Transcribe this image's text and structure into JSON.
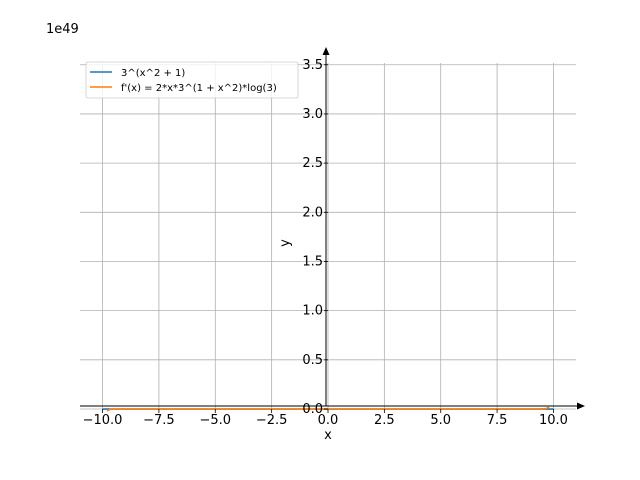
{
  "chart_data": {
    "type": "line",
    "title": "",
    "xlabel": "x",
    "ylabel": "y",
    "offset_text": "1e49",
    "xlim": [
      -11,
      11
    ],
    "ylim": [
      -0.01,
      3.65
    ],
    "xticks": [
      -10.0,
      -7.5,
      -5.0,
      -2.5,
      0.0,
      2.5,
      5.0,
      7.5,
      10.0
    ],
    "xtick_labels": [
      "−10.0",
      "−7.5",
      "−5.0",
      "−2.5",
      "0.0",
      "2.5",
      "5.0",
      "7.5",
      "10.0"
    ],
    "yticks": [
      0.0,
      0.5,
      1.0,
      1.5,
      2.0,
      2.5,
      3.0,
      3.5
    ],
    "ytick_labels": [
      "0.0",
      "0.5",
      "1.0",
      "1.5",
      "2.0",
      "2.5",
      "3.0",
      "3.5"
    ],
    "grid": true,
    "legend": "top-left",
    "series": [
      {
        "name": "3^(x^2 + 1)",
        "color": "#1f77b4",
        "x": [
          -10,
          -9.8,
          -9.6,
          -9,
          -8,
          -6,
          -4,
          -2,
          0,
          2,
          4,
          6,
          8,
          9,
          9.6,
          9.8,
          10
        ],
        "y": [
          0.0,
          0.0,
          0.0,
          0.0,
          0.0,
          0.0,
          0.0,
          0.0,
          0.0,
          0.0,
          0.0,
          0.0,
          0.0,
          0.0,
          0.0,
          0.0,
          0.0
        ]
      },
      {
        "name": "f'(x) = 2*x*3^(1 + x^2)*log(3)",
        "color": "#ff7f0e",
        "x": [
          -9.8,
          -9.75,
          -9.7,
          -9.6,
          -9,
          -8,
          -6,
          -4,
          -2,
          0,
          2,
          4,
          6,
          8,
          9,
          9.6,
          9.7,
          9.75,
          9.8
        ],
        "y": [
          -0.02,
          -0.012,
          -0.007,
          -0.002,
          0.0,
          0.0,
          0.0,
          0.0,
          0.0,
          0.0,
          0.0,
          0.0,
          0.0,
          0.0,
          0.0,
          0.002,
          0.007,
          0.012,
          0.02
        ]
      }
    ]
  }
}
